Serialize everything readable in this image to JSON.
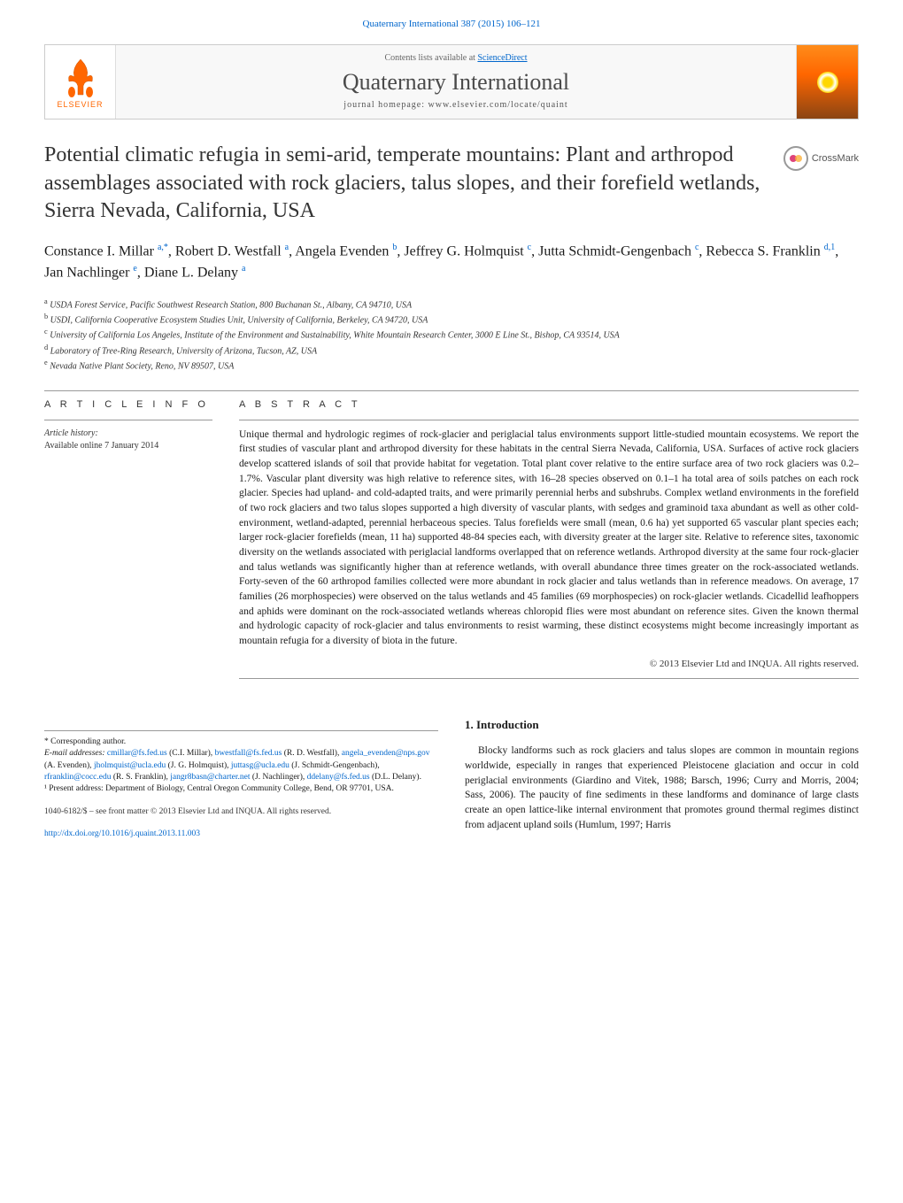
{
  "header": {
    "citation_link": "Quaternary International 387 (2015) 106–121",
    "contents_line_pre": "Contents lists available at ",
    "contents_line_link": "ScienceDirect",
    "journal_name": "Quaternary International",
    "homepage_line": "journal homepage: www.elsevier.com/locate/quaint",
    "publisher": "ELSEVIER",
    "crossmark": "CrossMark"
  },
  "article": {
    "title": "Potential climatic refugia in semi-arid, temperate mountains: Plant and arthropod assemblages associated with rock glaciers, talus slopes, and their forefield wetlands, Sierra Nevada, California, USA",
    "authors_html": "Constance I. Millar <sup>a,*</sup>, Robert D. Westfall <sup>a</sup>, Angela Evenden <sup>b</sup>, Jeffrey G. Holmquist <sup>c</sup>, Jutta Schmidt-Gengenbach <sup>c</sup>, Rebecca S. Franklin <sup>d,1</sup>, Jan Nachlinger <sup>e</sup>, Diane L. Delany <sup>a</sup>",
    "affiliations": [
      {
        "sup": "a",
        "text": "USDA Forest Service, Pacific Southwest Research Station, 800 Buchanan St., Albany, CA 94710, USA"
      },
      {
        "sup": "b",
        "text": "USDI, California Cooperative Ecosystem Studies Unit, University of California, Berkeley, CA 94720, USA"
      },
      {
        "sup": "c",
        "text": "University of California Los Angeles, Institute of the Environment and Sustainability, White Mountain Research Center, 3000 E Line St., Bishop, CA 93514, USA"
      },
      {
        "sup": "d",
        "text": "Laboratory of Tree-Ring Research, University of Arizona, Tucson, AZ, USA"
      },
      {
        "sup": "e",
        "text": "Nevada Native Plant Society, Reno, NV 89507, USA"
      }
    ]
  },
  "info": {
    "heading": "A R T I C L E   I N F O",
    "history_label": "Article history:",
    "available": "Available online 7 January 2014"
  },
  "abstract": {
    "heading": "A B S T R A C T",
    "text": "Unique thermal and hydrologic regimes of rock-glacier and periglacial talus environments support little-studied mountain ecosystems. We report the first studies of vascular plant and arthropod diversity for these habitats in the central Sierra Nevada, California, USA. Surfaces of active rock glaciers develop scattered islands of soil that provide habitat for vegetation. Total plant cover relative to the entire surface area of two rock glaciers was 0.2–1.7%. Vascular plant diversity was high relative to reference sites, with 16–28 species observed on 0.1–1 ha total area of soils patches on each rock glacier. Species had upland- and cold-adapted traits, and were primarily perennial herbs and subshrubs. Complex wetland environments in the forefield of two rock glaciers and two talus slopes supported a high diversity of vascular plants, with sedges and graminoid taxa abundant as well as other cold-environment, wetland-adapted, perennial herbaceous species. Talus forefields were small (mean, 0.6 ha) yet supported 65 vascular plant species each; larger rock-glacier forefields (mean, 11 ha) supported 48-84 species each, with diversity greater at the larger site. Relative to reference sites, taxonomic diversity on the wetlands associated with periglacial landforms overlapped that on reference wetlands. Arthropod diversity at the same four rock-glacier and talus wetlands was significantly higher than at reference wetlands, with overall abundance three times greater on the rock-associated wetlands. Forty-seven of the 60 arthropod families collected were more abundant in rock glacier and talus wetlands than in reference meadows. On average, 17 families (26 morphospecies) were observed on the talus wetlands and 45 families (69 morphospecies) on rock-glacier wetlands. Cicadellid leafhoppers and aphids were dominant on the rock-associated wetlands whereas chloropid flies were most abundant on reference sites. Given the known thermal and hydrologic capacity of rock-glacier and talus environments to resist warming, these distinct ecosystems might become increasingly important as mountain refugia for a diversity of biota in the future.",
    "copyright": "© 2013 Elsevier Ltd and INQUA. All rights reserved."
  },
  "intro": {
    "heading": "1. Introduction",
    "text": "Blocky landforms such as rock glaciers and talus slopes are common in mountain regions worldwide, especially in ranges that experienced Pleistocene glaciation and occur in cold periglacial environments (Giardino and Vitek, 1988; Barsch, 1996; Curry and Morris, 2004; Sass, 2006). The paucity of fine sediments in these landforms and dominance of large clasts create an open lattice-like internal environment that promotes ground thermal regimes distinct from adjacent upland soils (Humlum, 1997; Harris"
  },
  "footnotes": {
    "corresponding": "* Corresponding author.",
    "emails_label": "E-mail addresses:",
    "emails": [
      {
        "email": "cmillar@fs.fed.us",
        "who": "(C.I. Millar)"
      },
      {
        "email": "bwestfall@fs.fed.us",
        "who": "(R. D. Westfall)"
      },
      {
        "email": "angela_evenden@nps.gov",
        "who": "(A. Evenden)"
      },
      {
        "email": "jholmquist@ucla.edu",
        "who": "(J. G. Holmquist)"
      },
      {
        "email": "juttasg@ucla.edu",
        "who": "(J. Schmidt-Gengenbach)"
      },
      {
        "email": "rfranklin@cocc.edu",
        "who": "(R. S. Franklin)"
      },
      {
        "email": "jangr8basn@charter.net",
        "who": "(J. Nachlinger)"
      },
      {
        "email": "ddelany@fs.fed.us",
        "who": "(D.L. Delany)"
      }
    ],
    "present_address": "¹ Present address: Department of Biology, Central Oregon Community College, Bend, OR 97701, USA."
  },
  "footer": {
    "rights": "1040-6182/$ – see front matter © 2013 Elsevier Ltd and INQUA. All rights reserved.",
    "doi": "http://dx.doi.org/10.1016/j.quaint.2013.11.003"
  },
  "colors": {
    "link": "#0066cc",
    "elsevier_orange": "#ff6600",
    "text": "#1a1a1a",
    "muted": "#555555"
  }
}
